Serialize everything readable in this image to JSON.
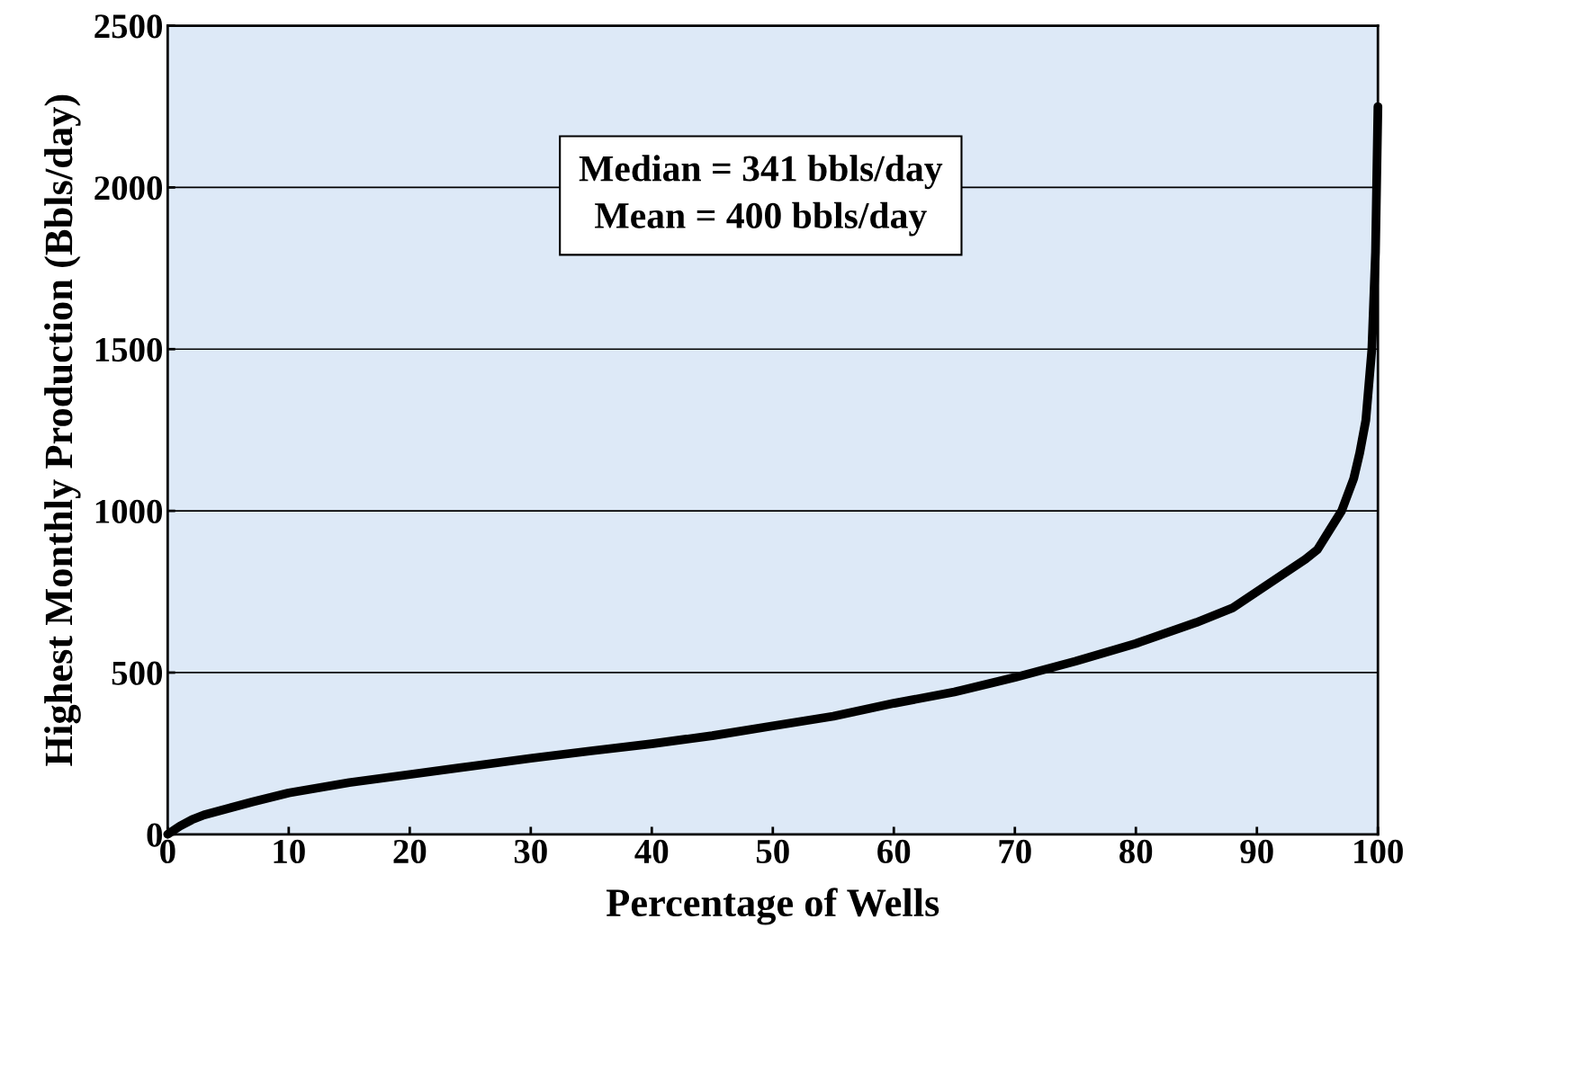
{
  "chart_data": {
    "type": "line",
    "xlabel": "Percentage of Wells",
    "ylabel": "Highest Monthly Production (Bbls/day)",
    "series": [
      {
        "color": "#000000",
        "x": [
          0,
          1,
          2,
          3,
          5,
          7,
          10,
          15,
          20,
          25,
          30,
          35,
          40,
          45,
          50,
          55,
          60,
          65,
          70,
          75,
          80,
          85,
          88,
          90,
          92,
          94,
          95,
          96,
          97,
          98,
          98.5,
          99,
          99.5,
          99.8,
          100
        ],
        "values": [
          0,
          25,
          45,
          60,
          80,
          100,
          128,
          160,
          185,
          210,
          235,
          258,
          280,
          305,
          335,
          365,
          405,
          440,
          485,
          535,
          590,
          655,
          700,
          750,
          800,
          850,
          880,
          940,
          1000,
          1100,
          1180,
          1280,
          1500,
          1800,
          2250
        ]
      }
    ],
    "xlim": [
      0,
      100
    ],
    "xticks": [
      0,
      10,
      20,
      30,
      40,
      50,
      60,
      70,
      80,
      90,
      100
    ],
    "ylim": [
      0,
      2500
    ],
    "yticks": [
      0,
      500,
      1000,
      1500,
      2000,
      2500
    ],
    "grid": "y",
    "marker": "none",
    "line_style": "solid",
    "annotations": [
      "Median = 341 bbls/day\nMean = 400 bbls/day"
    ]
  }
}
